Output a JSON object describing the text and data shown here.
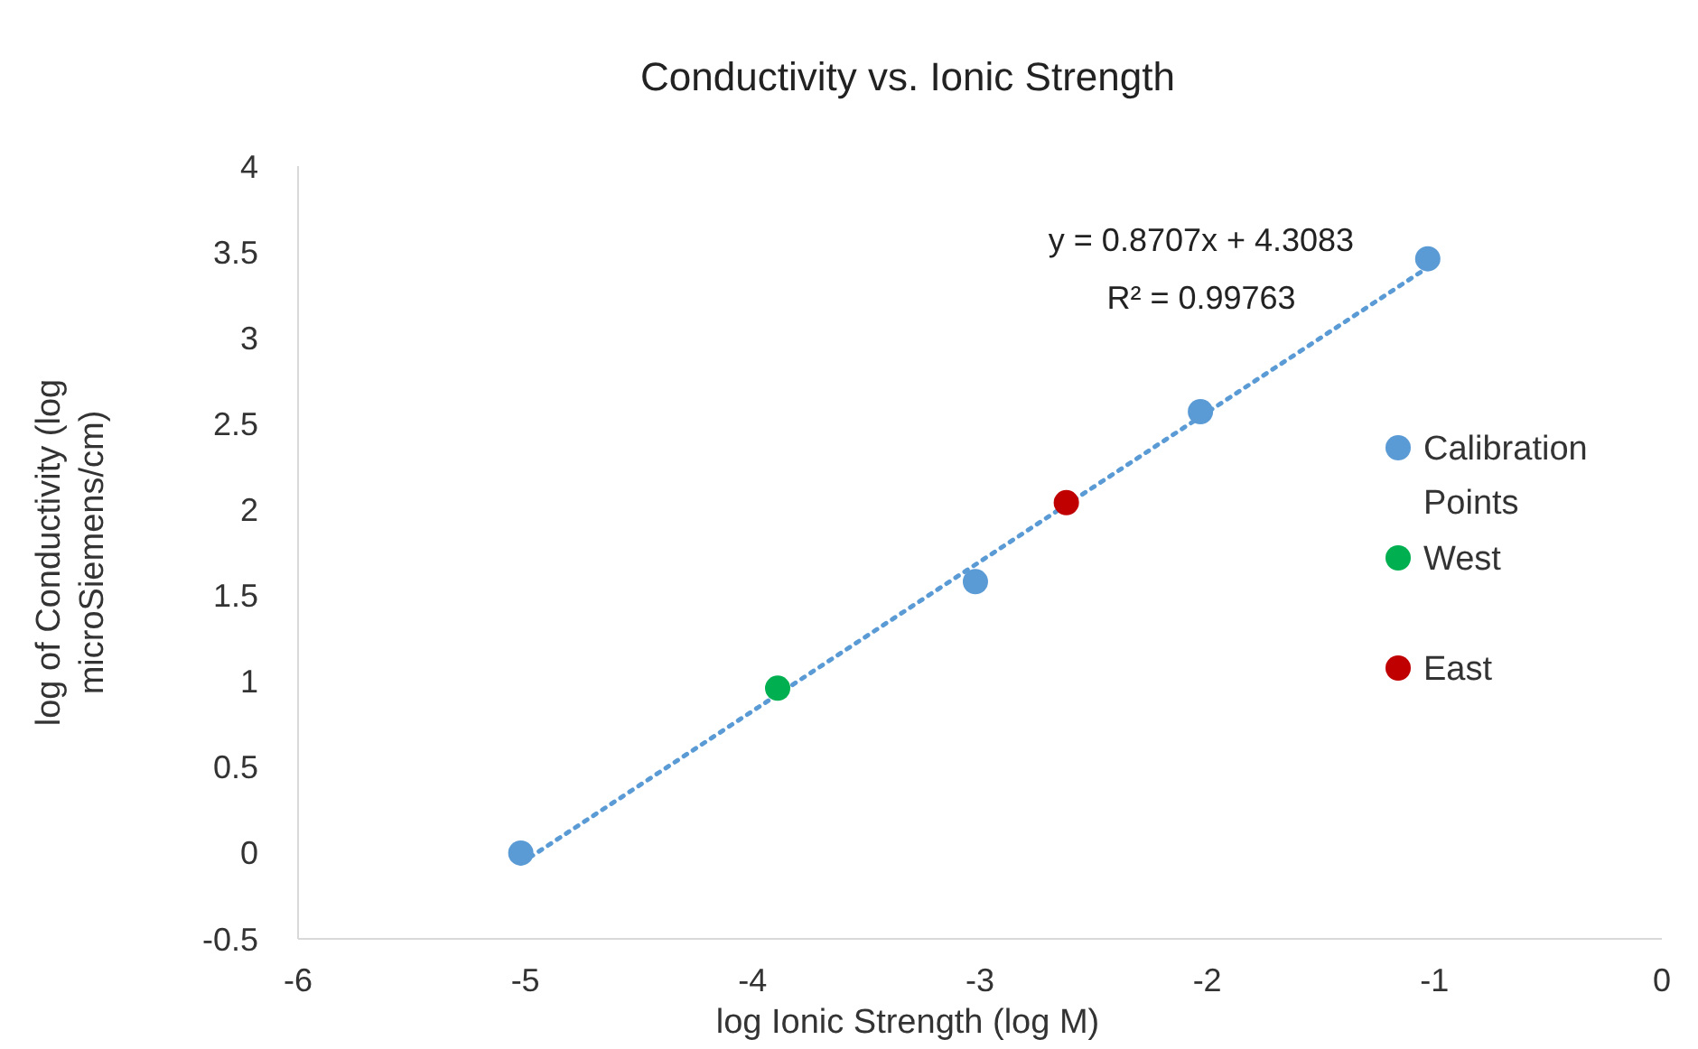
{
  "chart_data": {
    "type": "scatter",
    "title": "Conductivity vs. Ionic Strength",
    "xlabel": "log Ionic Strength (log M)",
    "ylabel": "log of Conductivity (log microSiemens/cm)",
    "xlim": [
      -6,
      0
    ],
    "xticks": [
      -6,
      -5,
      -4,
      -3,
      -2,
      -1,
      0
    ],
    "ylim": [
      -0.5,
      4
    ],
    "yticks": [
      -0.5,
      0,
      0.5,
      1,
      1.5,
      2,
      2.5,
      3,
      3.5,
      4
    ],
    "grid": false,
    "legend": "right",
    "marker": "circle",
    "series": [
      {
        "name": "Calibration Points",
        "color": "#5b9bd5",
        "x": [
          -5.02,
          -3.02,
          -2.03,
          -1.03
        ],
        "values": [
          0,
          1.58,
          2.57,
          3.46
        ]
      },
      {
        "name": "West",
        "color": "#00b050",
        "x": [
          -3.89
        ],
        "values": [
          0.96
        ]
      },
      {
        "name": "East",
        "color": "#c00000",
        "x": [
          -2.62
        ],
        "values": [
          2.04
        ]
      },
      {
        "type": "line",
        "color": "#5b9bd5",
        "line_style": "dotted",
        "marker": "none",
        "x": [
          -5.02,
          -1.03
        ],
        "values": [
          -0.06,
          3.41
        ]
      }
    ],
    "annotations": [
      "y = 0.8707x + 4.3083",
      "R² = 0.99763"
    ]
  }
}
